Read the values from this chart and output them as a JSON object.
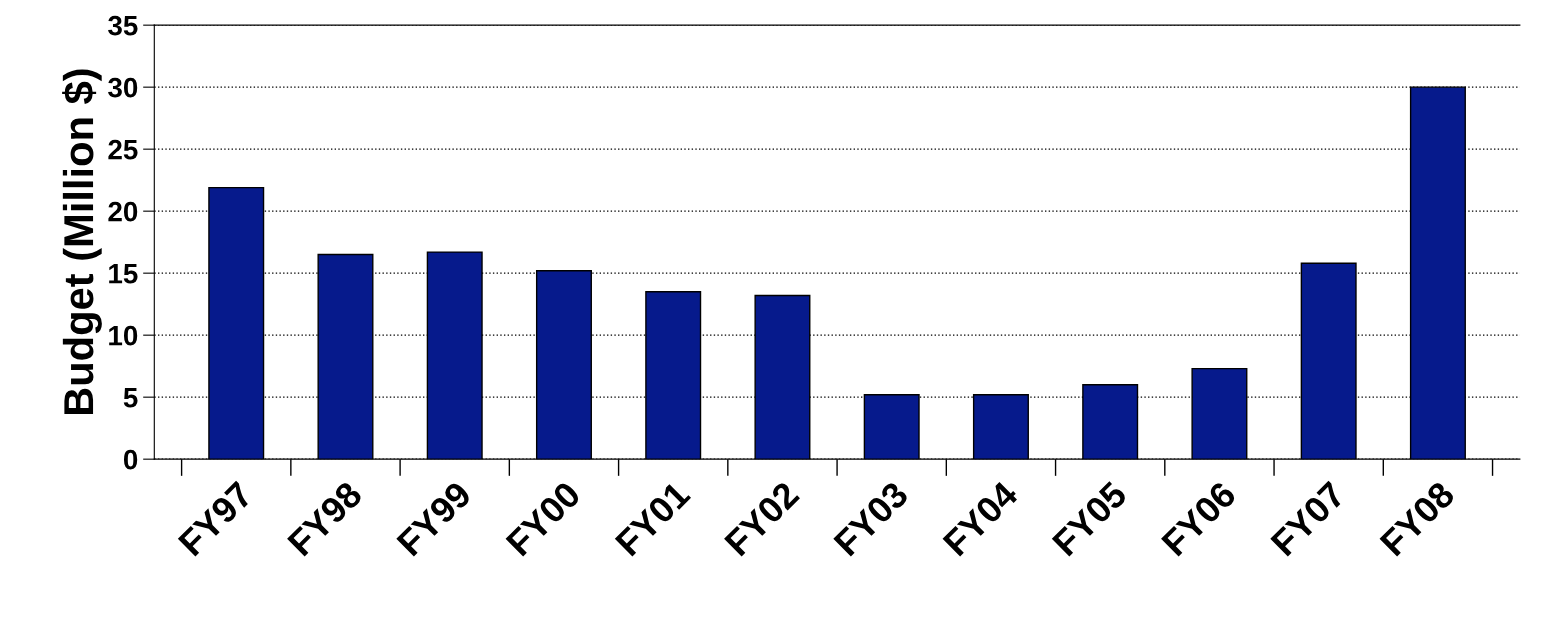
{
  "chart_data": {
    "type": "bar",
    "categories": [
      "FY97",
      "FY98",
      "FY99",
      "FY00",
      "FY01",
      "FY02",
      "FY03",
      "FY04",
      "FY05",
      "FY06",
      "FY07",
      "FY08"
    ],
    "values": [
      21.9,
      16.5,
      16.7,
      15.2,
      13.5,
      13.2,
      5.2,
      5.2,
      6.0,
      7.3,
      15.8,
      30
    ],
    "color": "#061a8c",
    "ylabel": "Budget (Million $)",
    "ylim": [
      0,
      35
    ],
    "yticks": [
      0,
      5,
      10,
      15,
      20,
      25,
      30,
      35
    ],
    "grid": "y"
  }
}
